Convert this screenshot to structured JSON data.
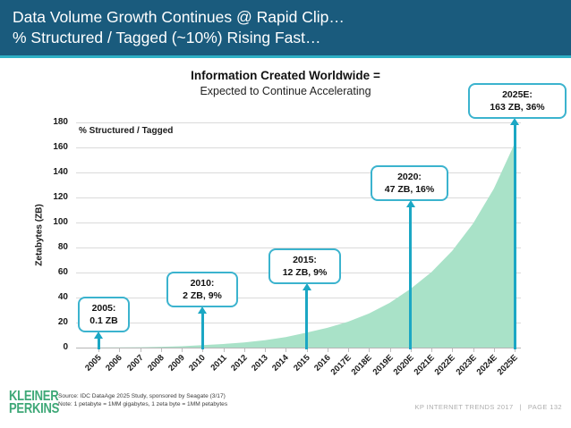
{
  "header": {
    "title_line1": "Data Volume Growth Continues @ Rapid Clip…",
    "title_line2": "% Structured / Tagged (~10%) Rising Fast…"
  },
  "chart_data": {
    "type": "area",
    "title": "Information Created Worldwide =",
    "subtitle": "Expected to Continue Accelerating",
    "ylabel": "Zetabytes (ZB)",
    "series_label": "% Structured / Tagged",
    "ylim": [
      0,
      180
    ],
    "ytick_step": 20,
    "grid": true,
    "legend_position": "top-left",
    "categories": [
      "2005",
      "2006",
      "2007",
      "2008",
      "2009",
      "2010",
      "2011",
      "2012",
      "2013",
      "2014",
      "2015",
      "2016",
      "2017E",
      "2018E",
      "2019E",
      "2020E",
      "2021E",
      "2022E",
      "2023E",
      "2024E",
      "2025E"
    ],
    "values": [
      0.1,
      0.2,
      0.3,
      0.6,
      1.1,
      2,
      2.9,
      4.1,
      5.9,
      8.4,
      12,
      15.8,
      20.7,
      27.2,
      35.8,
      47,
      60.3,
      77.3,
      99.1,
      127,
      163
    ],
    "annotations": [
      {
        "at": "2005",
        "line1": "2005:",
        "line2": "0.1 ZB"
      },
      {
        "at": "2010",
        "line1": "2010:",
        "line2": "2 ZB, 9%"
      },
      {
        "at": "2015",
        "line1": "2015:",
        "line2": "12 ZB, 9%"
      },
      {
        "at": "2020E",
        "line1": "2020:",
        "line2": "47 ZB, 16%"
      },
      {
        "at": "2025E",
        "line1": "2025E:",
        "line2": "163 ZB, 36%"
      }
    ],
    "fill_color": "#a9e2c8",
    "accent_color": "#1ba7c4"
  },
  "footer": {
    "logo_line1": "KLEINER",
    "logo_line2": "PERKINS",
    "source_line1": "Source: IDC DataAge 2025 Study, sponsored by Seagate (3/17)",
    "source_line2": "Note: 1 petabyte = 1MM gigabytes, 1 zeta byte = 1MM petabytes",
    "deck_label": "KP INTERNET TRENDS 2017",
    "separator": "|",
    "page_label": "PAGE 132"
  },
  "colors": {
    "header_bg": "#1a5b7d",
    "header_strip": "#2eb0c5",
    "callout_border": "#3bb3ce",
    "logo_green": "#3ea877",
    "footer_text": "#adadad",
    "gridline": "#dadada"
  }
}
